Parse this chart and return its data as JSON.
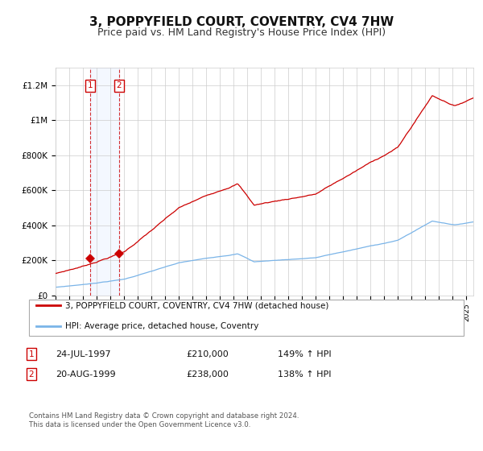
{
  "title": "3, POPPYFIELD COURT, COVENTRY, CV4 7HW",
  "subtitle": "Price paid vs. HM Land Registry's House Price Index (HPI)",
  "title_fontsize": 11,
  "subtitle_fontsize": 9,
  "background_color": "#ffffff",
  "plot_bg_color": "#ffffff",
  "grid_color": "#cccccc",
  "hpi_line_color": "#7ab4e8",
  "price_line_color": "#cc0000",
  "sale1_x": 1997.55,
  "sale1_y": 210000,
  "sale2_x": 1999.63,
  "sale2_y": 238000,
  "ylim": [
    0,
    1300000
  ],
  "xlim": [
    1995.0,
    2025.5
  ],
  "yticks": [
    0,
    200000,
    400000,
    600000,
    800000,
    1000000,
    1200000
  ],
  "ytick_labels": [
    "£0",
    "£200K",
    "£400K",
    "£600K",
    "£800K",
    "£1M",
    "£1.2M"
  ],
  "legend_line1": "3, POPPYFIELD COURT, COVENTRY, CV4 7HW (detached house)",
  "legend_line2": "HPI: Average price, detached house, Coventry",
  "annotation1_date": "24-JUL-1997",
  "annotation1_price": "£210,000",
  "annotation1_hpi": "149% ↑ HPI",
  "annotation2_date": "20-AUG-1999",
  "annotation2_price": "£238,000",
  "annotation2_hpi": "138% ↑ HPI",
  "footer": "Contains HM Land Registry data © Crown copyright and database right 2024.\nThis data is licensed under the Open Government Licence v3.0."
}
